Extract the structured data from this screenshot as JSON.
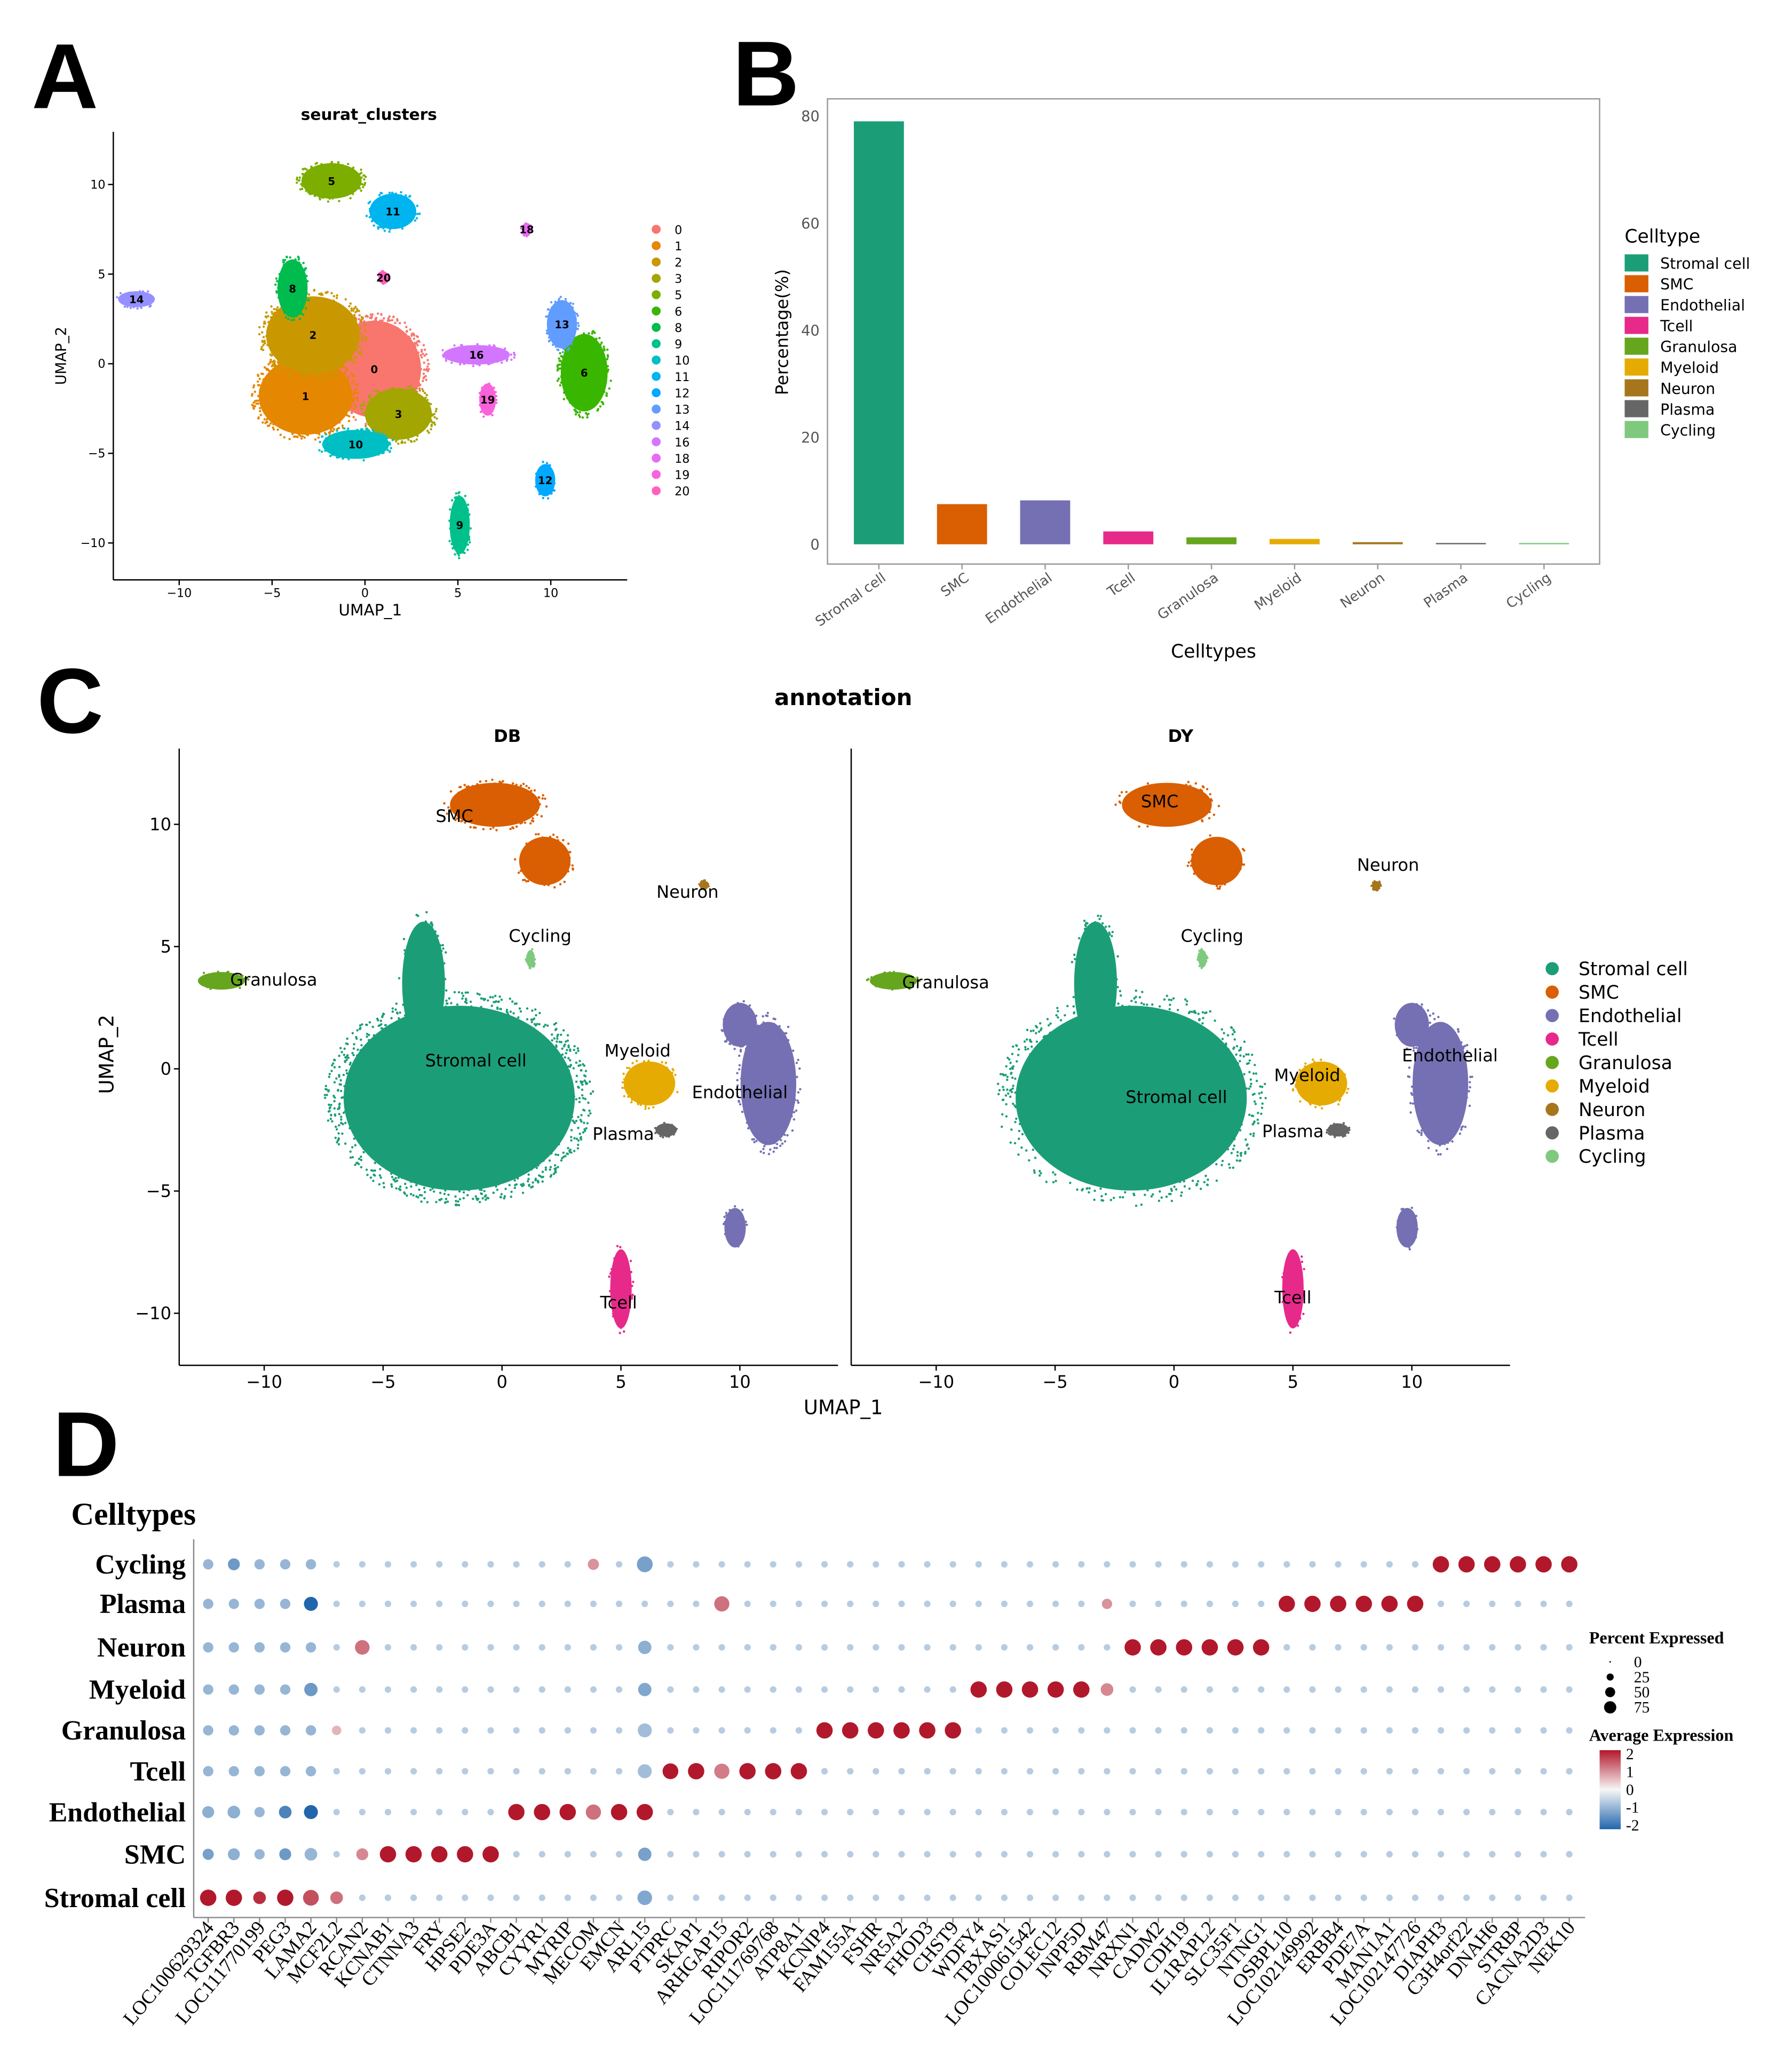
{
  "panel_letters": [
    "A",
    "B",
    "C",
    "D"
  ],
  "chart_data": [
    {
      "id": "A",
      "type": "scatter",
      "title": "seurat_clusters",
      "xlabel": "UMAP_1",
      "ylabel": "UMAP_2",
      "xticks": [
        -10,
        -5,
        0,
        5,
        10
      ],
      "yticks": [
        -10,
        -5,
        0,
        5,
        10
      ],
      "xlim": [
        -14.6,
        13.2
      ],
      "ylim": [
        -12,
        13
      ],
      "legend_position": "right",
      "clusters": [
        {
          "name": "0",
          "color": "#F8766D",
          "center": [
            0.5,
            -0.3
          ],
          "spread": [
            2.8,
            3.0
          ]
        },
        {
          "name": "1",
          "color": "#E58700",
          "center": [
            -3.2,
            -1.8
          ],
          "spread": [
            2.8,
            2.4
          ]
        },
        {
          "name": "2",
          "color": "#C99800",
          "center": [
            -2.8,
            1.6
          ],
          "spread": [
            2.8,
            2.4
          ]
        },
        {
          "name": "3",
          "color": "#A3A500",
          "center": [
            1.8,
            -2.8
          ],
          "spread": [
            2.0,
            1.6
          ]
        },
        {
          "name": "5",
          "color": "#7CAE00",
          "center": [
            -1.8,
            10.2
          ],
          "spread": [
            1.8,
            1.1
          ]
        },
        {
          "name": "6",
          "color": "#39B600",
          "center": [
            11.8,
            -0.5
          ],
          "spread": [
            1.4,
            2.4
          ]
        },
        {
          "name": "8",
          "color": "#00BB4E",
          "center": [
            -3.9,
            4.2
          ],
          "spread": [
            0.9,
            1.8
          ]
        },
        {
          "name": "9",
          "color": "#00C08B",
          "center": [
            5.1,
            -9.0
          ],
          "spread": [
            0.6,
            1.8
          ]
        },
        {
          "name": "10",
          "color": "#00BFC4",
          "center": [
            -0.5,
            -4.5
          ],
          "spread": [
            2.0,
            0.9
          ]
        },
        {
          "name": "11",
          "color": "#00B4F0",
          "center": [
            1.5,
            8.5
          ],
          "spread": [
            1.4,
            1.1
          ]
        },
        {
          "name": "12",
          "color": "#00A9FF",
          "center": [
            9.7,
            -6.5
          ],
          "spread": [
            0.6,
            1.0
          ]
        },
        {
          "name": "13",
          "color": "#619CFF",
          "center": [
            10.6,
            2.2
          ],
          "spread": [
            0.9,
            1.5
          ]
        },
        {
          "name": "14",
          "color": "#9590FF",
          "center": [
            -12.3,
            3.6
          ],
          "spread": [
            1.1,
            0.5
          ]
        },
        {
          "name": "16",
          "color": "#D376FF",
          "center": [
            6.0,
            0.5
          ],
          "spread": [
            2.0,
            0.6
          ]
        },
        {
          "name": "18",
          "color": "#E76BF3",
          "center": [
            8.7,
            7.5
          ],
          "spread": [
            0.3,
            0.4
          ]
        },
        {
          "name": "19",
          "color": "#FA62DB",
          "center": [
            6.6,
            -2.0
          ],
          "spread": [
            0.5,
            1.0
          ]
        },
        {
          "name": "20",
          "color": "#FF62BC",
          "center": [
            1.0,
            4.8
          ],
          "spread": [
            0.3,
            0.4
          ]
        }
      ]
    },
    {
      "id": "B",
      "type": "bar",
      "xlabel": "Celltypes",
      "ylabel": "Percentage(%)",
      "ylim": [
        -4,
        82
      ],
      "yticks": [
        0,
        20,
        40,
        60,
        80
      ],
      "legend_title": "Celltype",
      "legend_position": "right",
      "categories": [
        "Stromal cell",
        "SMC",
        "Endothelial",
        "Tcell",
        "Granulosa",
        "Myeloid",
        "Neuron",
        "Plasma",
        "Cycling"
      ],
      "values": [
        79.0,
        7.5,
        8.2,
        2.4,
        1.3,
        1.0,
        0.4,
        0.15,
        0.1
      ],
      "colors": [
        "#1B9E77",
        "#D95F02",
        "#7570B3",
        "#E7298A",
        "#66A61E",
        "#E6AB02",
        "#A6761D",
        "#666666",
        "#7FC97F"
      ]
    },
    {
      "id": "C",
      "type": "scatter",
      "title": "annotation",
      "facets": [
        "DB",
        "DY"
      ],
      "xlabel": "UMAP_1",
      "ylabel": "UMAP_2",
      "xticks": [
        -10,
        -5,
        0,
        5,
        10
      ],
      "yticks": [
        -10,
        -5,
        0,
        5,
        10
      ],
      "xlim": [
        -13.6,
        14
      ],
      "ylim": [
        -12.1,
        13.1
      ],
      "legend_position": "right",
      "celltypes": [
        {
          "name": "Stromal cell",
          "color": "#1B9E77"
        },
        {
          "name": "SMC",
          "color": "#D95F02"
        },
        {
          "name": "Endothelial",
          "color": "#7570B3"
        },
        {
          "name": "Tcell",
          "color": "#E7298A"
        },
        {
          "name": "Granulosa",
          "color": "#66A61E"
        },
        {
          "name": "Myeloid",
          "color": "#E6AB02"
        },
        {
          "name": "Neuron",
          "color": "#A6761D"
        },
        {
          "name": "Plasma",
          "color": "#666666"
        },
        {
          "name": "Cycling",
          "color": "#7FC97F"
        }
      ],
      "groups": [
        {
          "type": "Stromal cell",
          "center": [
            -1.8,
            -1.2
          ],
          "spread": [
            5.4,
            4.2
          ]
        },
        {
          "type": "Stromal cell",
          "center": [
            -3.3,
            3.5
          ],
          "spread": [
            1.0,
            2.8
          ]
        },
        {
          "type": "SMC",
          "center": [
            -0.3,
            10.8
          ],
          "spread": [
            2.1,
            1.0
          ]
        },
        {
          "type": "SMC",
          "center": [
            1.8,
            8.5
          ],
          "spread": [
            1.2,
            1.1
          ]
        },
        {
          "type": "Endothelial",
          "center": [
            11.2,
            -0.6
          ],
          "spread": [
            1.3,
            2.8
          ]
        },
        {
          "type": "Endothelial",
          "center": [
            10.0,
            1.8
          ],
          "spread": [
            0.8,
            1.0
          ]
        },
        {
          "type": "Endothelial",
          "center": [
            9.8,
            -6.5
          ],
          "spread": [
            0.5,
            0.9
          ]
        },
        {
          "type": "Tcell",
          "center": [
            5.0,
            -9.0
          ],
          "spread": [
            0.5,
            1.8
          ]
        },
        {
          "type": "Granulosa",
          "center": [
            -11.8,
            3.6
          ],
          "spread": [
            1.1,
            0.4
          ]
        },
        {
          "type": "Myeloid",
          "center": [
            6.2,
            -0.6
          ],
          "spread": [
            1.2,
            1.0
          ]
        },
        {
          "type": "Neuron",
          "center": [
            8.5,
            7.5
          ],
          "spread": [
            0.2,
            0.2
          ]
        },
        {
          "type": "Plasma",
          "center": [
            6.9,
            -2.5
          ],
          "spread": [
            0.5,
            0.3
          ]
        },
        {
          "type": "Cycling",
          "center": [
            1.2,
            4.5
          ],
          "spread": [
            0.2,
            0.4
          ]
        }
      ],
      "labels": {
        "DB": [
          {
            "text": "SMC",
            "at": [
              -2,
              10.1
            ]
          },
          {
            "text": "Neuron",
            "at": [
              7.8,
              7.0
            ]
          },
          {
            "text": "Cycling",
            "at": [
              1.6,
              5.2
            ]
          },
          {
            "text": "Granulosa",
            "at": [
              -9.6,
              3.4
            ]
          },
          {
            "text": "Stromal cell",
            "at": [
              -1.1,
              0.1
            ]
          },
          {
            "text": "Myeloid",
            "at": [
              5.7,
              0.5
            ]
          },
          {
            "text": "Endothelial",
            "at": [
              10,
              -1.2
            ]
          },
          {
            "text": "Plasma",
            "at": [
              5.1,
              -2.9
            ]
          },
          {
            "text": "Tcell",
            "at": [
              4.9,
              -9.8
            ]
          }
        ],
        "DY": [
          {
            "text": "SMC",
            "at": [
              -0.6,
              10.7
            ]
          },
          {
            "text": "Neuron",
            "at": [
              9.0,
              8.1
            ]
          },
          {
            "text": "Cycling",
            "at": [
              1.6,
              5.2
            ]
          },
          {
            "text": "Granulosa",
            "at": [
              -9.6,
              3.3
            ]
          },
          {
            "text": "Stromal cell",
            "at": [
              0.1,
              -1.4
            ]
          },
          {
            "text": "Myeloid",
            "at": [
              5.6,
              -0.5
            ]
          },
          {
            "text": "Endothelial",
            "at": [
              11.6,
              0.3
            ]
          },
          {
            "text": "Plasma",
            "at": [
              5.0,
              -2.8
            ]
          },
          {
            "text": "Tcell",
            "at": [
              5.0,
              -9.6
            ]
          }
        ]
      }
    },
    {
      "id": "D",
      "type": "dotplot",
      "title": "Celltypes",
      "rows": [
        "Cycling",
        "Plasma",
        "Neuron",
        "Myeloid",
        "Granulosa",
        "Tcell",
        "Endothelial",
        "SMC",
        "Stromal cell"
      ],
      "genes": [
        "LOC100629324",
        "TGFBR3",
        "LOC111770199",
        "PEG3",
        "LAMA2",
        "MCF2L2",
        "RCAN2",
        "KCNAB1",
        "CTNNA3",
        "FRY",
        "HPSE2",
        "PDE3A",
        "ABCB1",
        "CYYR1",
        "MYRIP",
        "MECOM",
        "EMCN",
        "ARL15",
        "PTPRC",
        "SKAP1",
        "ARHGAP15",
        "RIPOR2",
        "LOC111769768",
        "ATP8A1",
        "KCNIP4",
        "FAM155A",
        "FSHR",
        "NR5A2",
        "FHOD3",
        "CHST9",
        "WDFY4",
        "TBXAS1",
        "LOC100061542",
        "COLEC12",
        "INPP5D",
        "RBM47",
        "NRXN1",
        "CADM2",
        "CDH19",
        "IL1RAPL2",
        "SLC35F1",
        "NTNG1",
        "OSBPL10",
        "LOC102149992",
        "ERBB4",
        "PDE7A",
        "MAN1A1",
        "LOC102147726",
        "DIAPH3",
        "C3H4orf22",
        "DNAH6",
        "STRBP",
        "CACNA2D3",
        "NEK10"
      ],
      "marker_block_for_row": [
        8,
        7,
        6,
        5,
        4,
        3,
        2,
        1,
        0
      ],
      "marker_avg_expression": 2,
      "marker_pct_expressed": 75,
      "background_avg_expression": -0.6,
      "background_pct_expressed": 12,
      "exceptions": [
        {
          "row": "Stromal cell",
          "gene": "LAMA2",
          "avg": 1.5,
          "pct": 70
        },
        {
          "row": "Stromal cell",
          "gene": "MCF2L2",
          "avg": 1.2,
          "pct": 45
        },
        {
          "row": "Stromal cell",
          "gene": "LOC111770199",
          "avg": 1.8,
          "pct": 45
        },
        {
          "row": "Stromal cell",
          "gene": "ARL15",
          "avg": -1.1,
          "pct": 60
        },
        {
          "row": "SMC",
          "gene": "RCAN2",
          "avg": 1.0,
          "pct": 40
        },
        {
          "row": "SMC",
          "gene": "LOC100629324",
          "avg": -1.2,
          "pct": 35
        },
        {
          "row": "SMC",
          "gene": "TGFBR3",
          "avg": -1.0,
          "pct": 40
        },
        {
          "row": "SMC",
          "gene": "PEG3",
          "avg": -1.3,
          "pct": 40
        },
        {
          "row": "SMC",
          "gene": "LAMA2",
          "avg": -0.9,
          "pct": 45
        },
        {
          "row": "SMC",
          "gene": "ARL15",
          "avg": -1.2,
          "pct": 50
        },
        {
          "row": "Endothelial",
          "gene": "MECOM",
          "avg": 1.2,
          "pct": 65
        },
        {
          "row": "Endothelial",
          "gene": "LAMA2",
          "avg": -2,
          "pct": 55
        },
        {
          "row": "Endothelial",
          "gene": "PEG3",
          "avg": -1.6,
          "pct": 45
        },
        {
          "row": "Endothelial",
          "gene": "TGFBR3",
          "avg": -1.0,
          "pct": 45
        },
        {
          "row": "Endothelial",
          "gene": "LOC100629324",
          "avg": -1.0,
          "pct": 40
        },
        {
          "row": "Tcell",
          "gene": "ARHGAP15",
          "avg": 1.1,
          "pct": 65
        },
        {
          "row": "Tcell",
          "gene": "ARL15",
          "avg": -0.8,
          "pct": 55
        },
        {
          "row": "Tcell",
          "gene": "PTPRC",
          "avg": 2,
          "pct": 70
        },
        {
          "row": "Granulosa",
          "gene": "MCF2L2",
          "avg": 0.6,
          "pct": 25
        },
        {
          "row": "Granulosa",
          "gene": "ARL15",
          "avg": -0.8,
          "pct": 55
        },
        {
          "row": "Myeloid",
          "gene": "RBM47",
          "avg": 1.0,
          "pct": 45
        },
        {
          "row": "Myeloid",
          "gene": "ARL15",
          "avg": -1.1,
          "pct": 50
        },
        {
          "row": "Myeloid",
          "gene": "LAMA2",
          "avg": -1.3,
          "pct": 50
        },
        {
          "row": "Neuron",
          "gene": "RCAN2",
          "avg": 1.2,
          "pct": 60
        },
        {
          "row": "Neuron",
          "gene": "ARL15",
          "avg": -1.0,
          "pct": 50
        },
        {
          "row": "Plasma",
          "gene": "ARHGAP15",
          "avg": 1.2,
          "pct": 65
        },
        {
          "row": "Plasma",
          "gene": "RBM47",
          "avg": 0.9,
          "pct": 30
        },
        {
          "row": "Plasma",
          "gene": "LAMA2",
          "avg": -2,
          "pct": 55
        },
        {
          "row": "Cycling",
          "gene": "MECOM",
          "avg": 0.9,
          "pct": 35
        },
        {
          "row": "Cycling",
          "gene": "ARL15",
          "avg": -1.2,
          "pct": 70
        },
        {
          "row": "Cycling",
          "gene": "TGFBR3",
          "avg": -1.3,
          "pct": 40
        }
      ],
      "size_legend": {
        "title": "Percent Expressed",
        "values": [
          0,
          25,
          50,
          75
        ]
      },
      "color_legend": {
        "title": "Average Expression",
        "ticks": [
          2,
          1,
          0,
          -1,
          -2
        ],
        "low": "#2166AC",
        "mid": "#F7F7F7",
        "high": "#B2182B"
      }
    }
  ]
}
